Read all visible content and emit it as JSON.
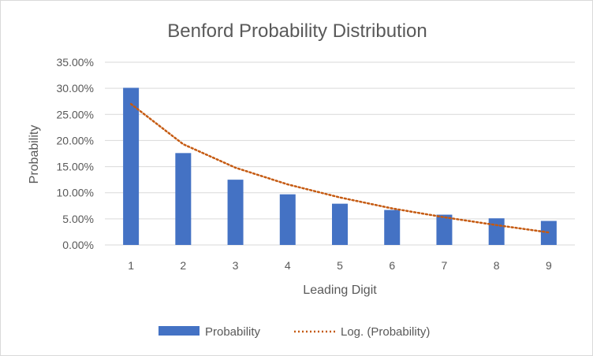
{
  "chart_data": {
    "type": "bar",
    "title": "Benford Probability Distribution",
    "xlabel": "Leading Digit",
    "ylabel": "Probability",
    "categories": [
      "1",
      "2",
      "3",
      "4",
      "5",
      "6",
      "7",
      "8",
      "9"
    ],
    "series": [
      {
        "name": "Probability",
        "type": "bar",
        "color": "#4472c4",
        "values": [
          0.301,
          0.176,
          0.125,
          0.097,
          0.079,
          0.067,
          0.058,
          0.051,
          0.046
        ]
      }
    ],
    "trendline": {
      "name": "Log. (Probability)",
      "type": "logarithmic",
      "style": "dotted",
      "color": "#c55a11",
      "values": [
        0.27,
        0.193,
        0.148,
        0.116,
        0.091,
        0.07,
        0.053,
        0.038,
        0.024
      ]
    },
    "ylim": [
      0,
      0.35
    ],
    "yticks": [
      "0.00%",
      "5.00%",
      "10.00%",
      "15.00%",
      "20.00%",
      "25.00%",
      "30.00%",
      "35.00%"
    ],
    "grid": true,
    "legend": "bottom"
  }
}
